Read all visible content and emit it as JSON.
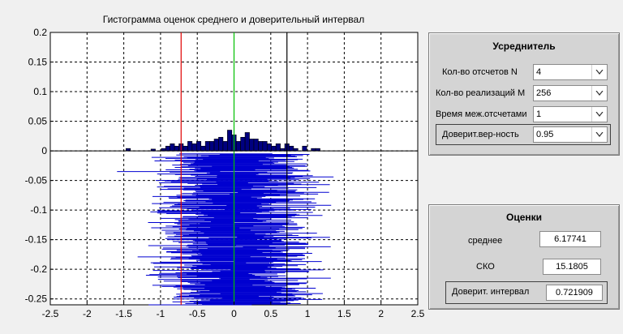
{
  "window": {
    "bg_color": "#f0f0f0"
  },
  "chart_data": {
    "type": "bar",
    "title": "Гистограмма оценок среднего и доверительный интервал",
    "xlim": [
      -2.5,
      2.5
    ],
    "ylim": [
      -0.26,
      0.2
    ],
    "x_ticks": [
      "-2.5",
      "-2",
      "-1.5",
      "-1",
      "-0.5",
      "0",
      "0.5",
      "1",
      "1.5",
      "2",
      "2.5"
    ],
    "y_ticks": [
      "0.2",
      "0.15",
      "0.1",
      "0.05",
      "0",
      "-0.05",
      "-0.1",
      "-0.15",
      "-0.2",
      "-0.25"
    ],
    "grid": true,
    "grid_style": "dashed",
    "histogram": {
      "bin_width": 0.06,
      "bins": [
        {
          "x": -1.44,
          "y": 0.004
        },
        {
          "x": -1.1,
          "y": 0.003
        },
        {
          "x": -0.96,
          "y": 0.004
        },
        {
          "x": -0.9,
          "y": 0.008
        },
        {
          "x": -0.84,
          "y": 0.012
        },
        {
          "x": -0.78,
          "y": 0.008
        },
        {
          "x": -0.72,
          "y": 0.012
        },
        {
          "x": -0.66,
          "y": 0.008
        },
        {
          "x": -0.6,
          "y": 0.016
        },
        {
          "x": -0.54,
          "y": 0.012
        },
        {
          "x": -0.48,
          "y": 0.016
        },
        {
          "x": -0.42,
          "y": 0.008
        },
        {
          "x": -0.36,
          "y": 0.016
        },
        {
          "x": -0.3,
          "y": 0.016
        },
        {
          "x": -0.24,
          "y": 0.02
        },
        {
          "x": -0.18,
          "y": 0.023
        },
        {
          "x": -0.12,
          "y": 0.016
        },
        {
          "x": -0.06,
          "y": 0.035
        },
        {
          "x": 0.0,
          "y": 0.027
        },
        {
          "x": 0.06,
          "y": 0.016
        },
        {
          "x": 0.12,
          "y": 0.023
        },
        {
          "x": 0.18,
          "y": 0.031
        },
        {
          "x": 0.24,
          "y": 0.02
        },
        {
          "x": 0.3,
          "y": 0.02
        },
        {
          "x": 0.36,
          "y": 0.016
        },
        {
          "x": 0.42,
          "y": 0.016
        },
        {
          "x": 0.48,
          "y": 0.012
        },
        {
          "x": 0.54,
          "y": 0.008
        },
        {
          "x": 0.6,
          "y": 0.012
        },
        {
          "x": 0.66,
          "y": 0.004
        },
        {
          "x": 0.72,
          "y": 0.012
        },
        {
          "x": 0.78,
          "y": 0.008
        },
        {
          "x": 0.84,
          "y": 0.004
        },
        {
          "x": 0.96,
          "y": 0.008
        },
        {
          "x": 1.08,
          "y": 0.004
        },
        {
          "x": 1.14,
          "y": 0.004
        }
      ],
      "bar_color": "#000080",
      "edge_color": "#000000"
    },
    "vlines": [
      {
        "x": -0.72,
        "color": "#e00000"
      },
      {
        "x": 0.0,
        "color": "#00c000"
      },
      {
        "x": 0.72,
        "color": "#000000"
      }
    ],
    "interval_lines": {
      "color": "#0000d0",
      "count": 256,
      "y_start": -0.005,
      "y_step": -0.001
    }
  },
  "averager": {
    "title": "Усреднитель",
    "rows": [
      {
        "label": "Кол-во отсчетов N",
        "value": "4"
      },
      {
        "label": "Кол-во реализаций M",
        "value": "256"
      },
      {
        "label": "Время меж.отсчетами",
        "value": "1"
      },
      {
        "label": "Доверит.вер-ность",
        "value": "0.95"
      }
    ]
  },
  "estimates": {
    "title": "Оценки",
    "rows": [
      {
        "label": "среднее",
        "value": "6.17741"
      },
      {
        "label": "СКО",
        "value": "15.1805"
      },
      {
        "label": "Доверит. интервал",
        "value": "0.721909"
      }
    ]
  }
}
